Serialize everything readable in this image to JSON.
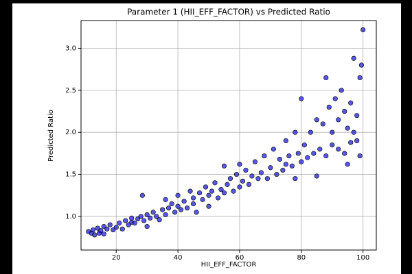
{
  "chart_data": {
    "type": "scatter",
    "title": "Parameter 1 (HII_EFF_FACTOR) vs Predicted Ratio",
    "x_label": "HII_EFF_FACTOR",
    "y_label": "Predicted Ratio",
    "color": "#1f1fd6",
    "edge_color": "#000000",
    "grid": true,
    "xlim": [
      8.6,
      104.3
    ],
    "xticks": [
      20,
      40,
      60,
      80,
      100
    ],
    "ylim": [
      0.6,
      3.33
    ],
    "yticks": [
      {
        "value": 1,
        "label": "1.0"
      },
      1.5,
      {
        "value": 2,
        "label": "2.0"
      },
      2.5,
      {
        "value": 3,
        "label": "3.0"
      }
    ],
    "x": [
      11,
      12,
      12.5,
      13,
      14,
      14.5,
      15,
      16,
      16,
      17,
      18,
      19,
      20,
      21,
      22,
      23,
      24,
      25,
      25,
      26,
      27,
      28,
      28.5,
      29,
      30,
      30,
      31,
      32,
      33,
      34,
      35,
      36,
      36,
      37,
      38,
      39,
      40,
      40,
      41,
      42,
      43,
      44,
      45,
      45,
      46,
      47,
      48,
      49,
      50,
      50,
      51,
      52,
      53,
      54,
      55,
      55,
      56,
      57,
      58,
      59,
      60,
      60,
      61,
      62,
      63,
      64,
      65,
      66,
      67,
      68,
      69,
      70,
      71,
      72,
      73,
      74,
      75,
      75,
      76,
      77,
      78,
      78,
      79,
      80,
      80,
      81,
      82,
      83,
      84,
      85,
      85,
      86,
      87,
      88,
      88,
      89,
      90,
      90,
      91,
      92,
      92,
      93,
      94,
      94,
      95,
      95,
      96,
      96,
      97,
      97,
      98,
      98,
      99,
      99,
      99.5,
      100
    ],
    "values": [
      0.82,
      0.8,
      0.84,
      0.78,
      0.86,
      0.8,
      0.83,
      0.88,
      0.79,
      0.85,
      0.9,
      0.84,
      0.87,
      0.92,
      0.85,
      0.95,
      0.9,
      0.93,
      0.98,
      0.92,
      0.97,
      1.0,
      1.25,
      0.95,
      1.02,
      0.88,
      0.98,
      1.05,
      1.0,
      0.96,
      1.08,
      1.02,
      1.2,
      1.1,
      1.15,
      1.05,
      1.12,
      1.25,
      1.08,
      1.18,
      1.1,
      1.3,
      1.15,
      1.22,
      1.05,
      1.28,
      1.2,
      1.35,
      1.25,
      1.12,
      1.3,
      1.4,
      1.22,
      1.32,
      1.28,
      1.6,
      1.38,
      1.45,
      1.3,
      1.5,
      1.35,
      1.62,
      1.42,
      1.55,
      1.38,
      1.48,
      1.65,
      1.45,
      1.52,
      1.72,
      1.45,
      1.58,
      1.8,
      1.5,
      1.68,
      1.55,
      1.9,
      1.62,
      1.72,
      1.6,
      2.0,
      1.45,
      1.75,
      1.65,
      2.4,
      1.85,
      1.7,
      2.0,
      1.75,
      2.15,
      1.48,
      1.8,
      2.1,
      1.72,
      2.65,
      2.3,
      1.85,
      2.0,
      2.4,
      1.8,
      2.15,
      2.5,
      1.75,
      2.25,
      2.05,
      1.62,
      2.35,
      1.88,
      2.88,
      2.0,
      1.9,
      2.2,
      2.65,
      1.72,
      2.8,
      3.22
    ]
  }
}
